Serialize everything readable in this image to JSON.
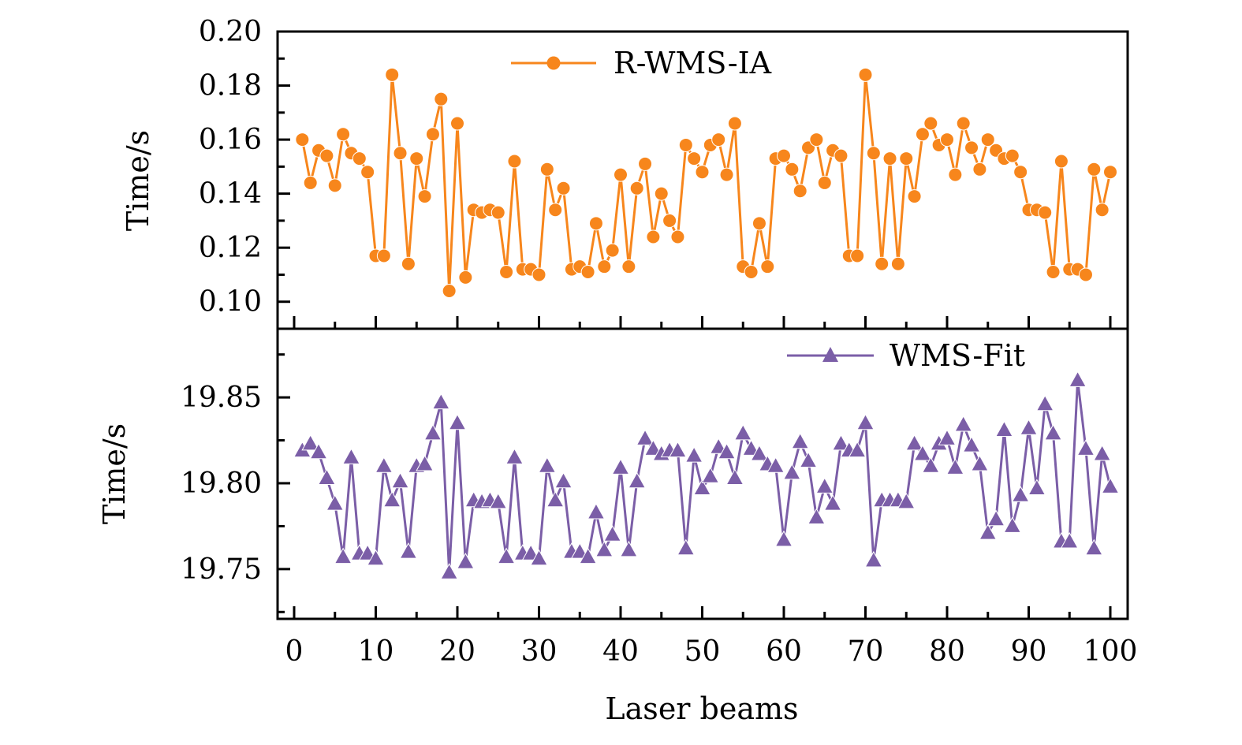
{
  "chart_data": [
    {
      "type": "line",
      "panel": "top",
      "title": "",
      "xlabel": "Laser beams",
      "ylabel": "Time/s",
      "xlim": [
        -2,
        102
      ],
      "ylim": [
        0.09,
        0.2
      ],
      "yticks": [
        0.1,
        0.12,
        0.14,
        0.16,
        0.18,
        0.2
      ],
      "ytick_labels": [
        "0.10",
        "0.12",
        "0.14",
        "0.16",
        "0.18",
        "0.20"
      ],
      "xticks": [
        0,
        10,
        20,
        30,
        40,
        50,
        60,
        70,
        80,
        90,
        100
      ],
      "grid": false,
      "legend_position": "top-center",
      "series": [
        {
          "name": "R-WMS-IA",
          "color": "#F7861C",
          "marker": "circle",
          "x": [
            1,
            2,
            3,
            4,
            5,
            6,
            7,
            8,
            9,
            10,
            11,
            12,
            13,
            14,
            15,
            16,
            17,
            18,
            19,
            20,
            21,
            22,
            23,
            24,
            25,
            26,
            27,
            28,
            29,
            30,
            31,
            32,
            33,
            34,
            35,
            36,
            37,
            38,
            39,
            40,
            41,
            42,
            43,
            44,
            45,
            46,
            47,
            48,
            49,
            50,
            51,
            52,
            53,
            54,
            55,
            56,
            57,
            58,
            59,
            60,
            61,
            62,
            63,
            64,
            65,
            66,
            67,
            68,
            69,
            70,
            71,
            72,
            73,
            74,
            75,
            76,
            77,
            78,
            79,
            80,
            81,
            82,
            83,
            84,
            85,
            86,
            87,
            88,
            89,
            90,
            91,
            92,
            93,
            94,
            95,
            96,
            97,
            98,
            99,
            100
          ],
          "values": [
            0.16,
            0.144,
            0.156,
            0.154,
            0.143,
            0.162,
            0.155,
            0.153,
            0.148,
            0.117,
            0.117,
            0.184,
            0.155,
            0.114,
            0.153,
            0.139,
            0.162,
            0.175,
            0.104,
            0.166,
            0.109,
            0.134,
            0.133,
            0.134,
            0.133,
            0.111,
            0.152,
            0.112,
            0.112,
            0.11,
            0.149,
            0.134,
            0.142,
            0.112,
            0.113,
            0.111,
            0.129,
            0.113,
            0.119,
            0.147,
            0.113,
            0.142,
            0.151,
            0.124,
            0.14,
            0.13,
            0.124,
            0.158,
            0.153,
            0.148,
            0.158,
            0.16,
            0.147,
            0.166,
            0.113,
            0.111,
            0.129,
            0.113,
            0.153,
            0.154,
            0.149,
            0.141,
            0.157,
            0.16,
            0.144,
            0.156,
            0.154,
            0.117,
            0.117,
            0.184,
            0.155,
            0.114,
            0.153,
            0.114,
            0.153,
            0.139,
            0.162,
            0.166,
            0.158,
            0.16,
            0.147,
            0.166,
            0.157,
            0.149,
            0.16,
            0.156,
            0.153,
            0.154,
            0.148,
            0.134,
            0.134,
            0.133,
            0.111,
            0.152,
            0.112,
            0.112,
            0.11,
            0.149,
            0.134,
            0.148
          ]
        }
      ]
    },
    {
      "type": "line",
      "panel": "bottom",
      "title": "",
      "xlabel": "Laser beams",
      "ylabel": "Time/s",
      "xlim": [
        -2,
        102
      ],
      "ylim": [
        19.721,
        19.89
      ],
      "yticks": [
        19.75,
        19.8,
        19.85
      ],
      "ytick_labels": [
        "19.75",
        "19.80",
        "19.85"
      ],
      "xticks": [
        0,
        10,
        20,
        30,
        40,
        50,
        60,
        70,
        80,
        90,
        100
      ],
      "xtick_labels": [
        "0",
        "10",
        "20",
        "30",
        "40",
        "50",
        "60",
        "70",
        "80",
        "90",
        "100"
      ],
      "grid": false,
      "legend_position": "top-right",
      "series": [
        {
          "name": "WMS-Fit",
          "color": "#7B5EA7",
          "marker": "triangle",
          "x": [
            1,
            2,
            3,
            4,
            5,
            6,
            7,
            8,
            9,
            10,
            11,
            12,
            13,
            14,
            15,
            16,
            17,
            18,
            19,
            20,
            21,
            22,
            23,
            24,
            25,
            26,
            27,
            28,
            29,
            30,
            31,
            32,
            33,
            34,
            35,
            36,
            37,
            38,
            39,
            40,
            41,
            42,
            43,
            44,
            45,
            46,
            47,
            48,
            49,
            50,
            51,
            52,
            53,
            54,
            55,
            56,
            57,
            58,
            59,
            60,
            61,
            62,
            63,
            64,
            65,
            66,
            67,
            68,
            69,
            70,
            71,
            72,
            73,
            74,
            75,
            76,
            77,
            78,
            79,
            80,
            81,
            82,
            83,
            84,
            85,
            86,
            87,
            88,
            89,
            90,
            91,
            92,
            93,
            94,
            95,
            96,
            97,
            98,
            99,
            100
          ],
          "values": [
            19.819,
            19.823,
            19.818,
            19.803,
            19.788,
            19.757,
            19.815,
            19.759,
            19.759,
            19.756,
            19.81,
            19.79,
            19.801,
            19.76,
            19.81,
            19.811,
            19.829,
            19.847,
            19.748,
            19.835,
            19.754,
            19.79,
            19.789,
            19.79,
            19.789,
            19.757,
            19.815,
            19.759,
            19.759,
            19.756,
            19.81,
            19.79,
            19.801,
            19.76,
            19.76,
            19.757,
            19.783,
            19.761,
            19.77,
            19.809,
            19.761,
            19.801,
            19.826,
            19.82,
            19.817,
            19.819,
            19.819,
            19.762,
            19.816,
            19.797,
            19.804,
            19.821,
            19.818,
            19.803,
            19.829,
            19.82,
            19.817,
            19.811,
            19.81,
            19.767,
            19.806,
            19.824,
            19.813,
            19.78,
            19.798,
            19.788,
            19.823,
            19.819,
            19.819,
            19.835,
            19.755,
            19.79,
            19.79,
            19.79,
            19.789,
            19.823,
            19.817,
            19.81,
            19.823,
            19.826,
            19.809,
            19.834,
            19.822,
            19.811,
            19.771,
            19.779,
            19.831,
            19.775,
            19.793,
            19.832,
            19.797,
            19.846,
            19.829,
            19.766,
            19.766,
            19.86,
            19.82,
            19.762,
            19.817,
            19.798
          ]
        }
      ]
    }
  ]
}
